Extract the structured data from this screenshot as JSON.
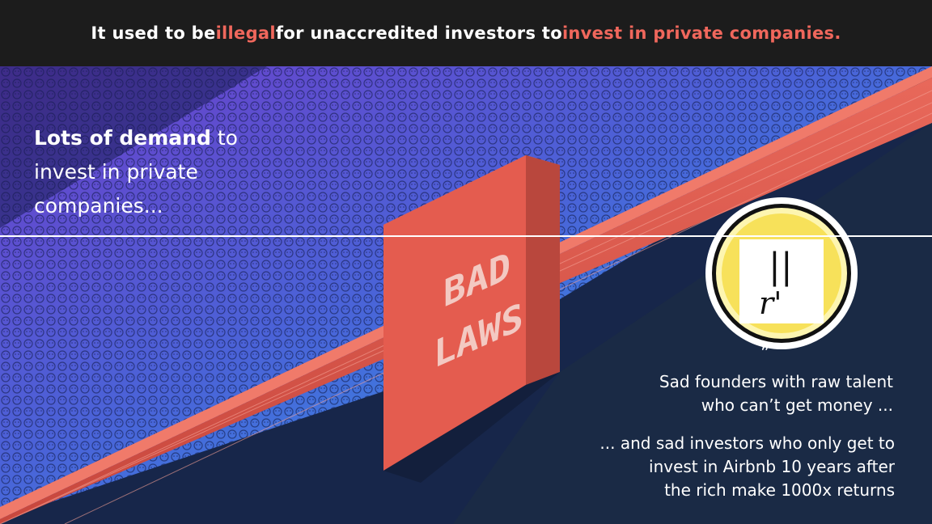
{
  "header": {
    "part1": "It used to be ",
    "highlight1": "illegal",
    "part2": " for unaccredited investors to ",
    "highlight2": "invest in private companies."
  },
  "crowd_text": {
    "bold": "Lots of demand",
    "rest1": " to",
    "line2": "invest in private",
    "line3": "companies..."
  },
  "wall_label": {
    "line1": "BAD",
    "line2": "LAWS"
  },
  "founder_badge": {
    "symbol_top": "||",
    "symbol_bottom": "r'",
    "quote_mark": "”"
  },
  "captions": {
    "founders_line1": "Sad founders with raw talent",
    "founders_line2": "who can’t get money ...",
    "investors_line1": "... and sad investors who only get to",
    "investors_line2": "invest in Airbnb 10 years after",
    "investors_line3": "the rich make 1000x returns"
  },
  "colors": {
    "header_bg": "#1c1c1c",
    "highlight": "#f0675c",
    "wall": "#e0574a",
    "crowd_top": "#7a4bd6",
    "crowd_bottom": "#2aa3e8",
    "right_bg": "#1a2a45",
    "badge": "#f7e15a"
  }
}
